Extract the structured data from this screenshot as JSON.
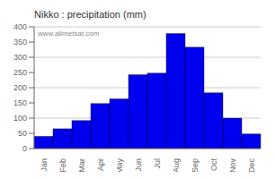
{
  "chart_data": {
    "type": "bar",
    "title": "Nikko : precipitation (mm)",
    "categories": [
      "Jan",
      "Feb",
      "Mar",
      "Apr",
      "May",
      "Jun",
      "Jul",
      "Aug",
      "Sep",
      "Oct",
      "Nov",
      "Dec"
    ],
    "values": [
      40,
      65,
      92,
      148,
      163,
      243,
      248,
      378,
      333,
      183,
      100,
      48
    ],
    "color": "#0000EE",
    "ylim": [
      0,
      400
    ],
    "yticks": [
      0,
      50,
      100,
      150,
      200,
      250,
      300,
      350,
      400
    ],
    "grid": true,
    "annotation": "www.allmetsat.com"
  }
}
